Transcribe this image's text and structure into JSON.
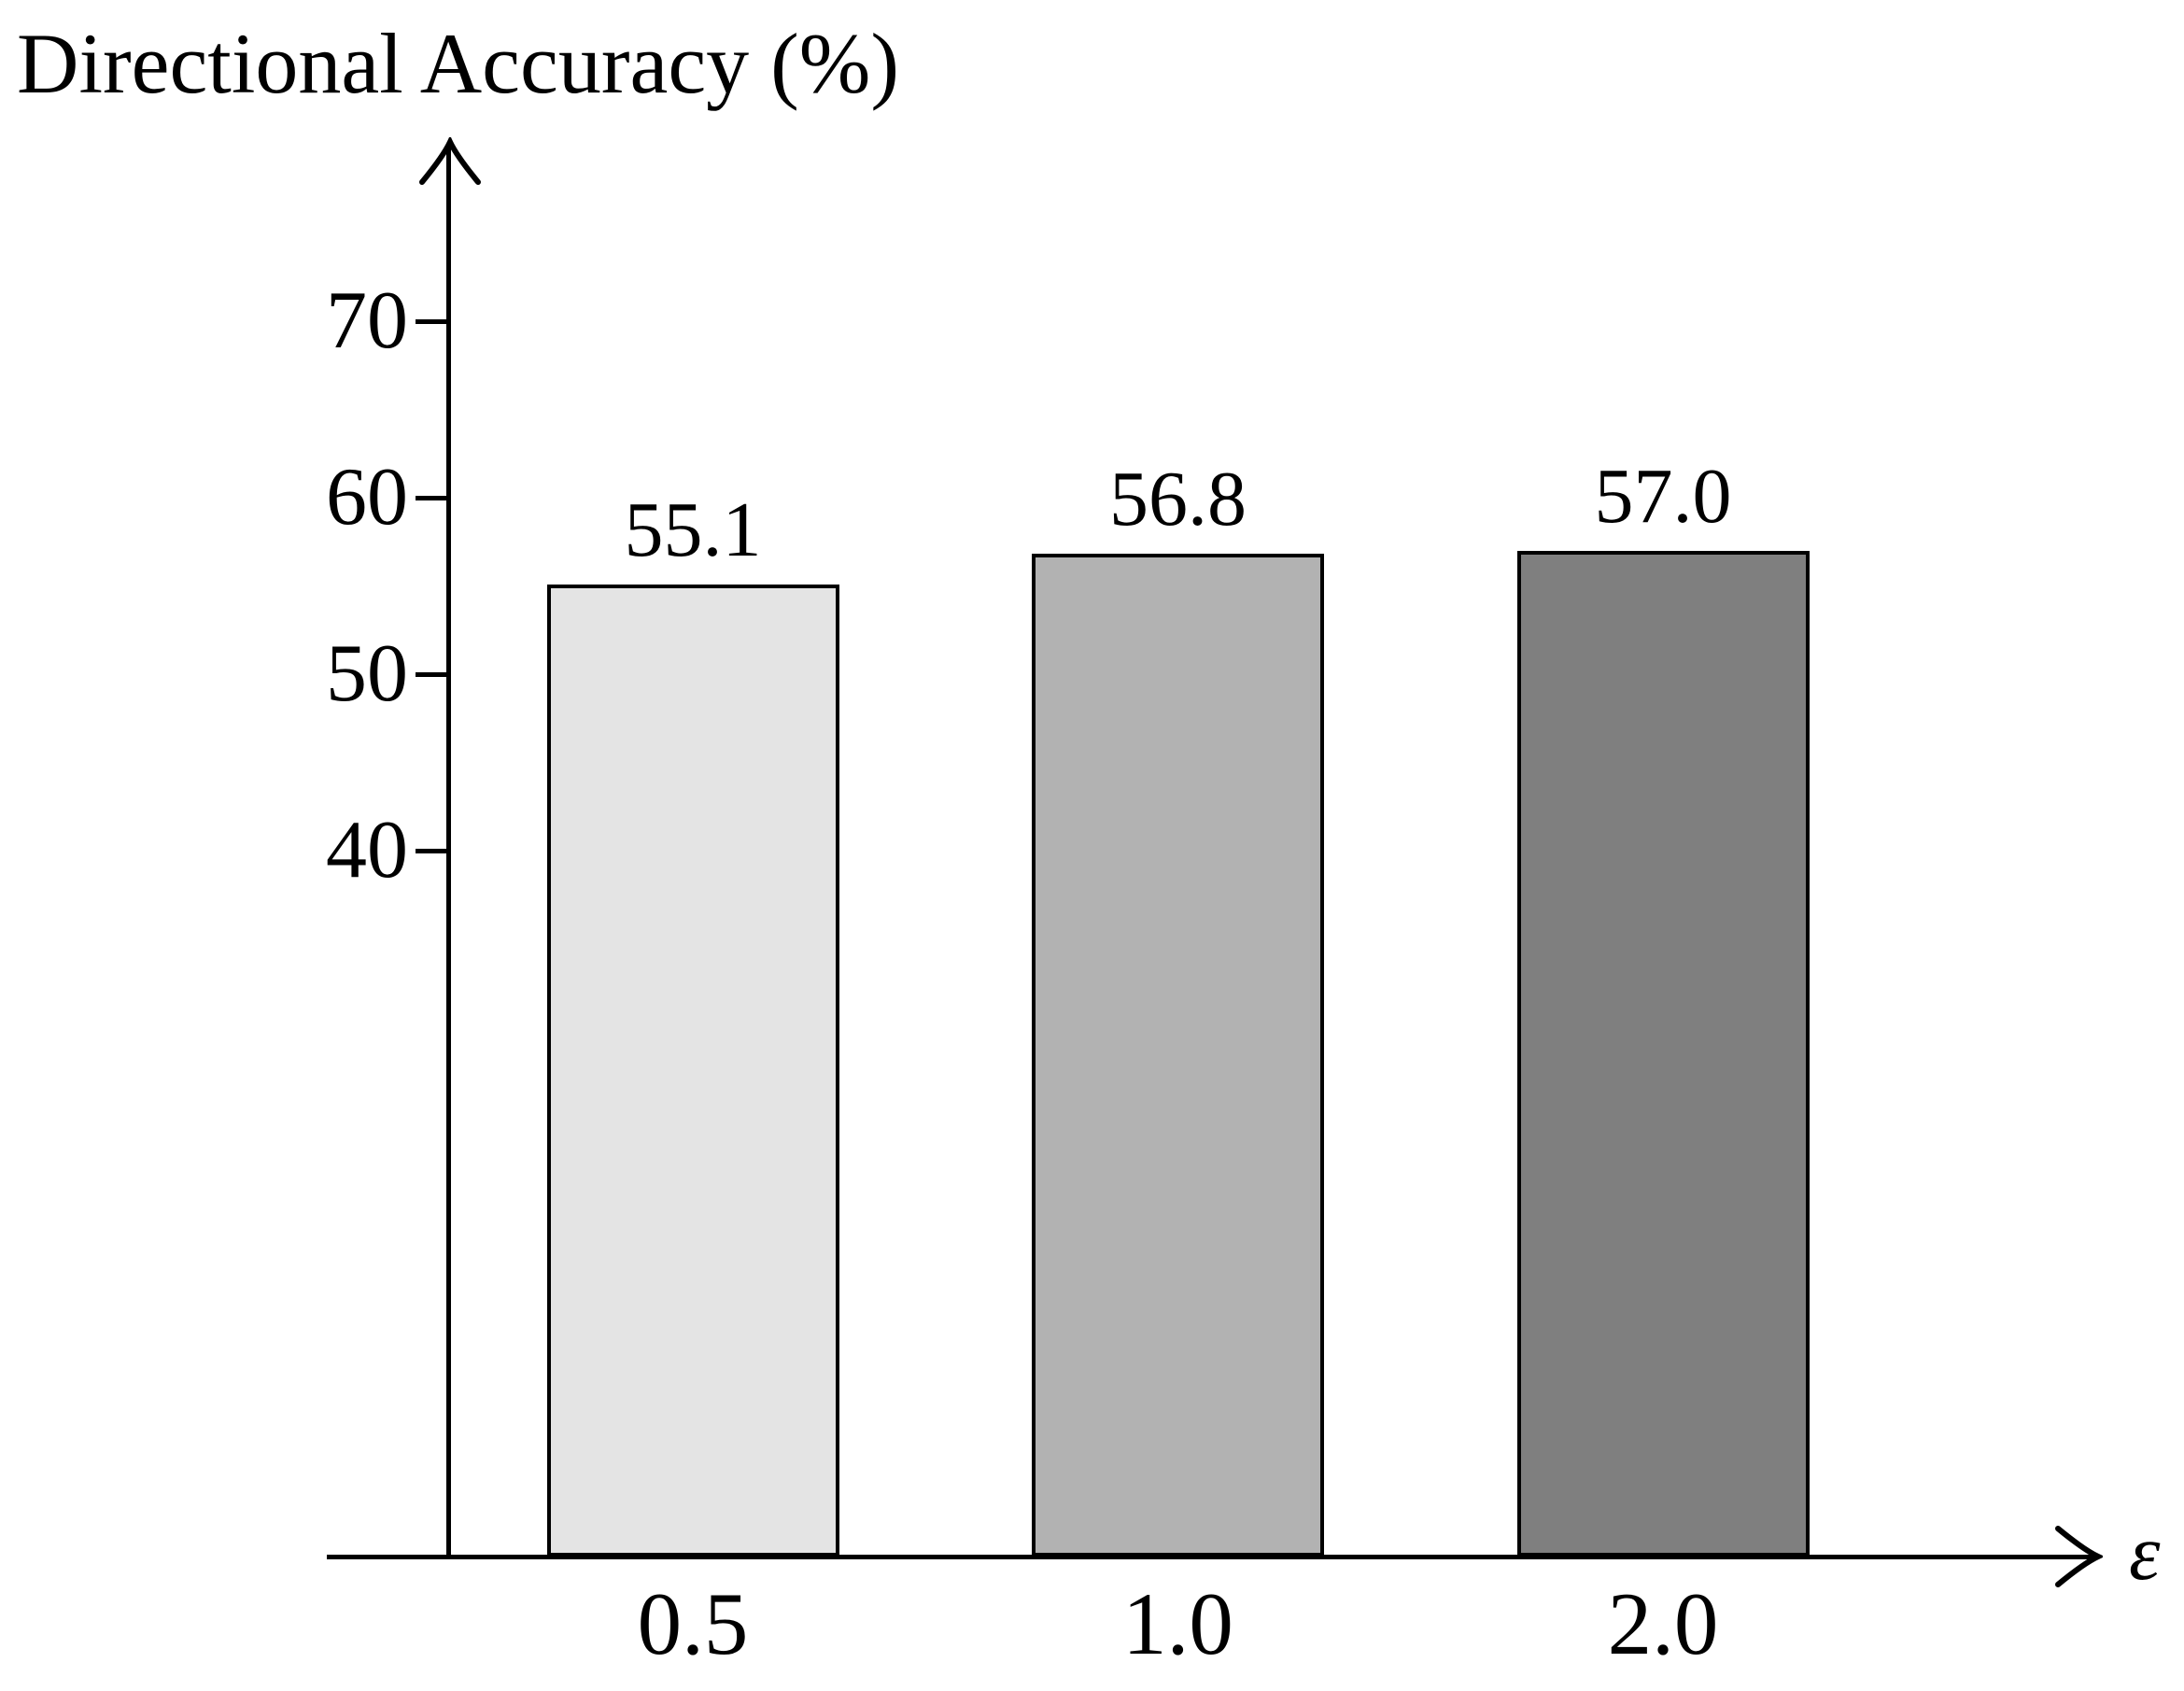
{
  "chart_data": {
    "type": "bar",
    "title": "Directional Accuracy (%)",
    "xlabel": "ε",
    "ylabel": "Directional Accuracy (%)",
    "categories": [
      "0.5",
      "1.0",
      "2.0"
    ],
    "values": [
      55.1,
      56.8,
      57.0
    ],
    "bar_labels": [
      "55.1",
      "56.8",
      "57.0"
    ],
    "bar_colors": [
      "#e4e4e4",
      "#b2b2b2",
      "#7f7f7f"
    ],
    "bar_border_color": "#000000",
    "axis_color": "#000000",
    "y_ticks": [
      40,
      50,
      60,
      70
    ],
    "ylim": [
      0,
      80
    ],
    "grid": false,
    "legend": null
  }
}
